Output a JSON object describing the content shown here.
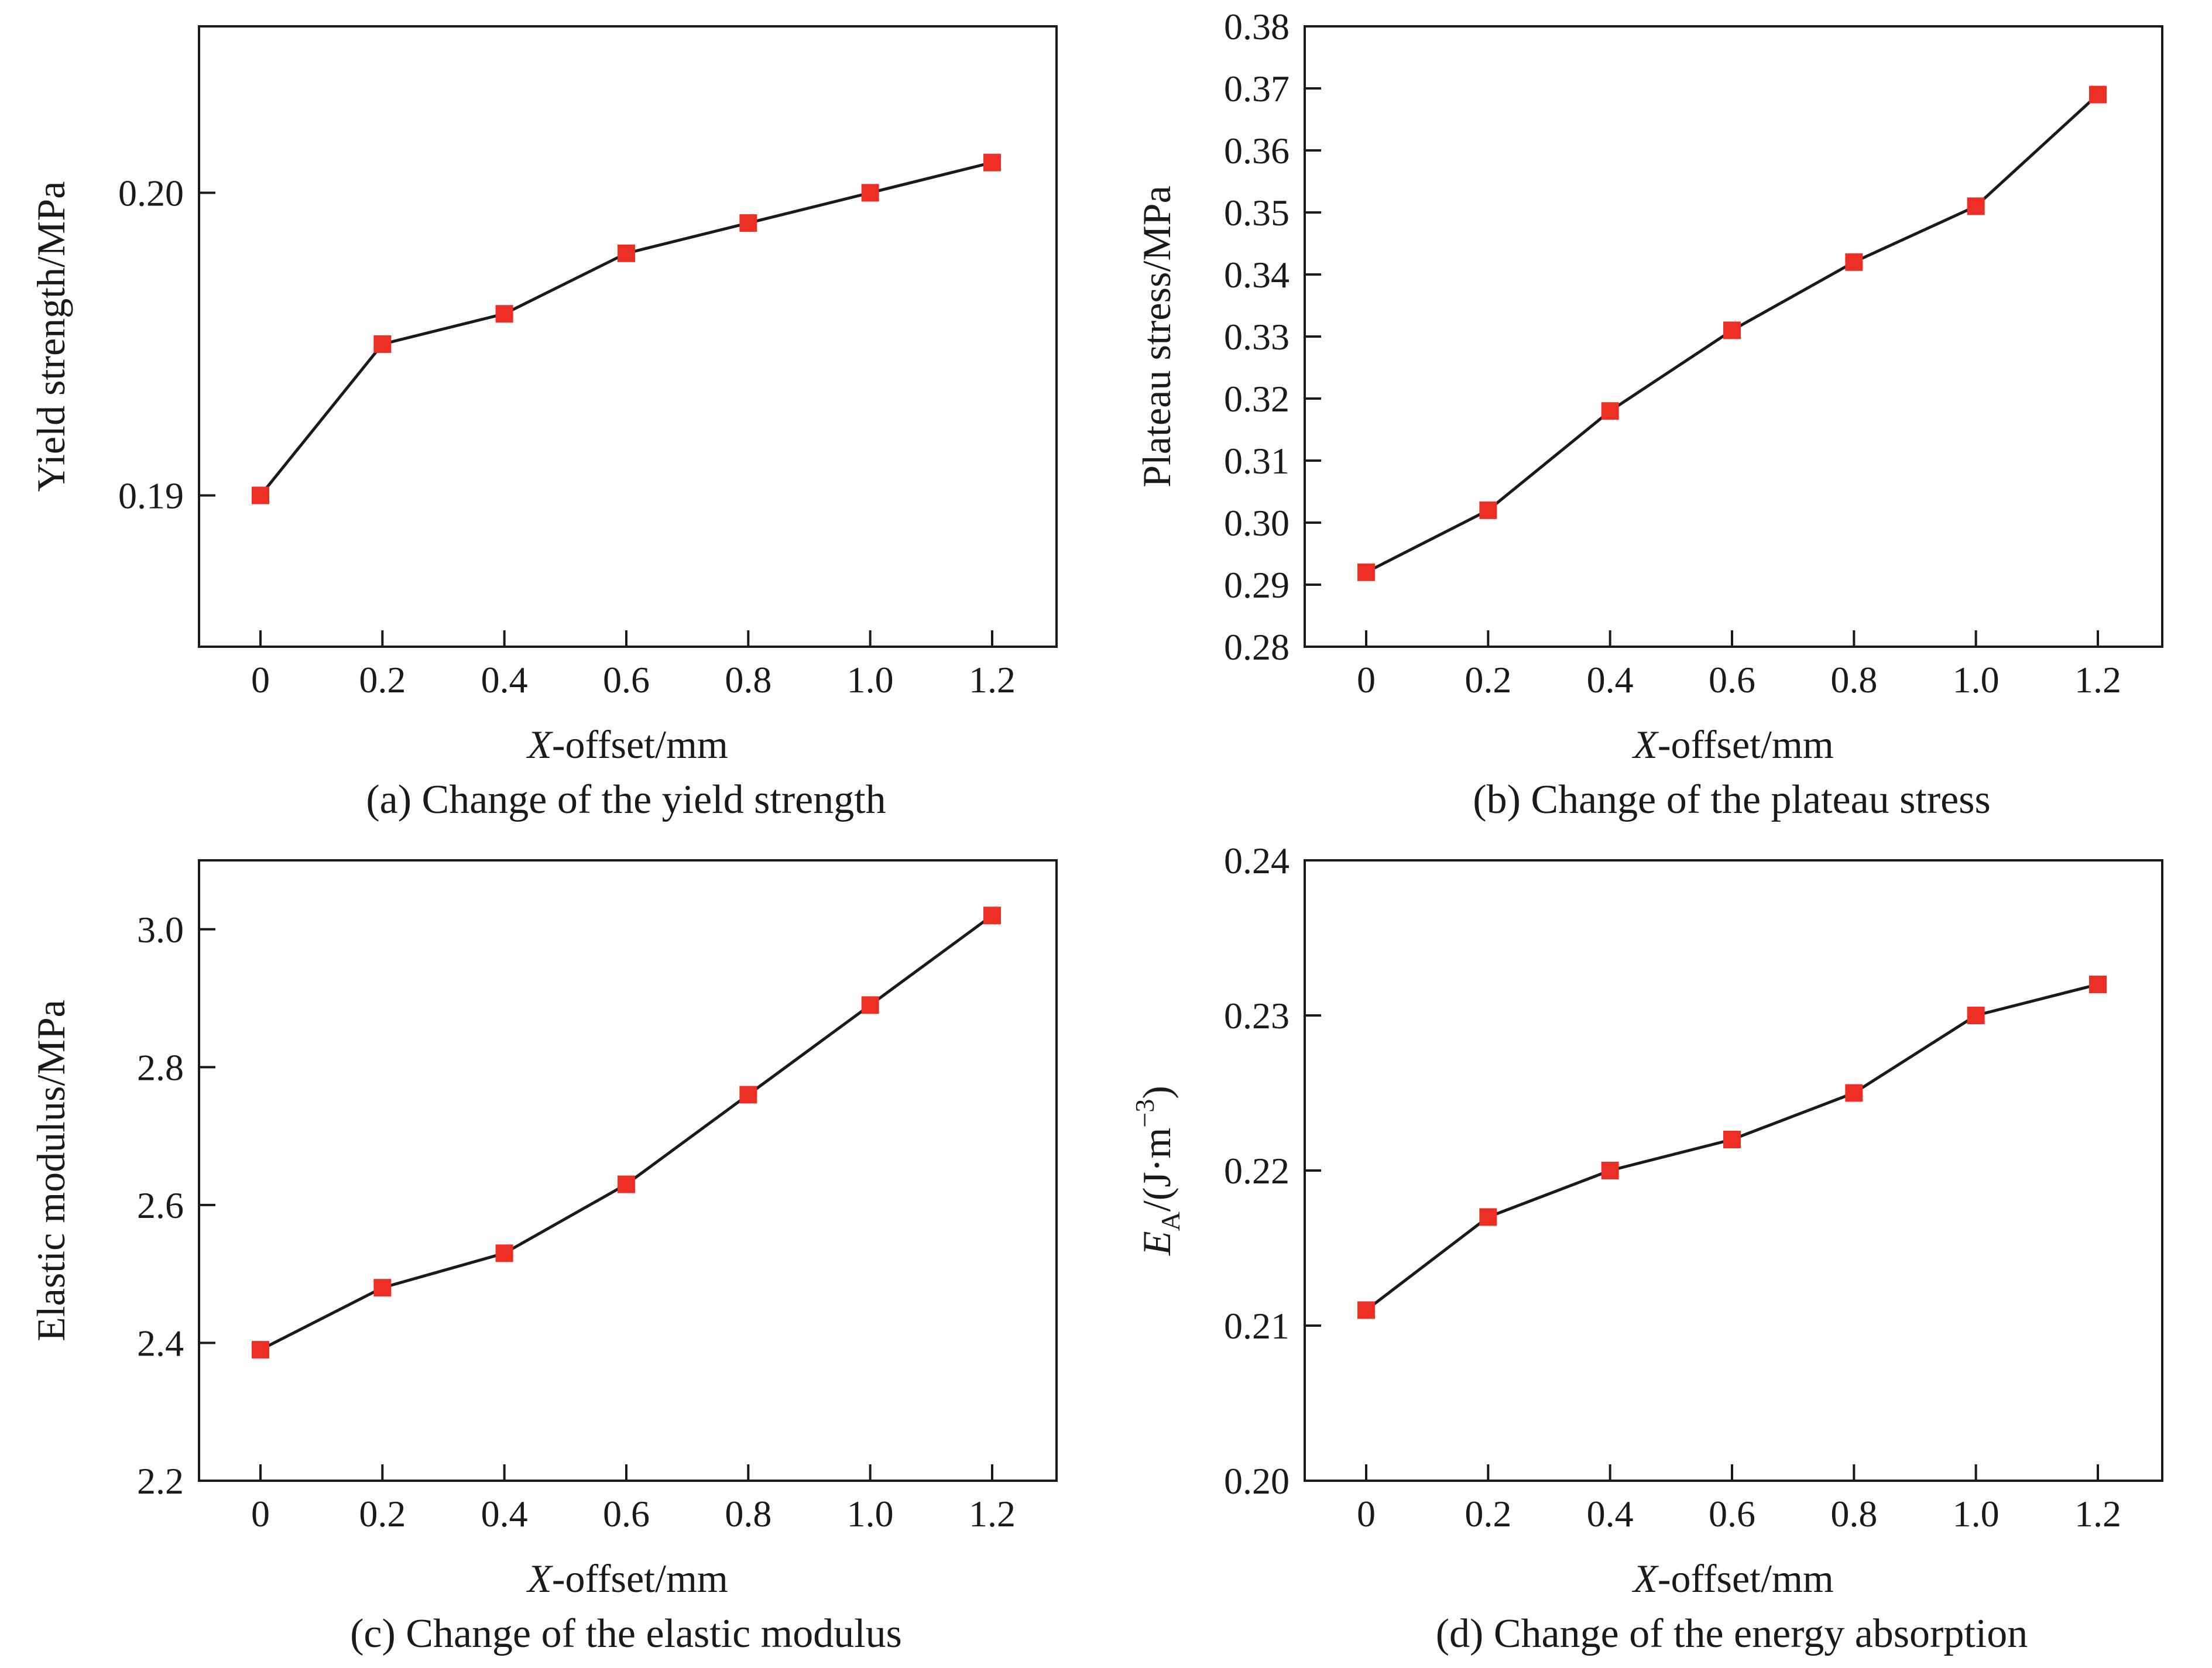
{
  "figure": {
    "background": "#ffffff"
  },
  "style": {
    "marker_red": "#ed2e24",
    "line_black": "#1a1a1a",
    "axis_black": "#1a1a1a",
    "text_black": "#1a1a1a"
  },
  "chart_data": [
    {
      "id": "a",
      "type": "line",
      "caption": "(a) Change of the yield strength",
      "xlabel": "X-offset/mm",
      "xlabel_parts": [
        {
          "t": "X",
          "style": "italic"
        },
        {
          "t": "-offset/mm",
          "style": "normal"
        }
      ],
      "ylabel": "Yield strength/MPa",
      "ylabel_parts": [
        {
          "t": "Yield strength/MPa",
          "style": "normal"
        }
      ],
      "x_categories": [
        "0",
        "0.2",
        "0.4",
        "0.6",
        "0.8",
        "1.0",
        "1.2"
      ],
      "x_values": [
        0,
        0.2,
        0.4,
        0.6,
        0.8,
        1.0,
        1.2
      ],
      "values": [
        0.19,
        0.195,
        0.196,
        0.198,
        0.199,
        0.2,
        0.201
      ],
      "yticks": [
        {
          "v": 0.19,
          "label": "0.19"
        },
        {
          "v": 0.2,
          "label": "0.20"
        }
      ],
      "ylim": [
        0.185,
        0.2055
      ],
      "grid": false,
      "legend": null,
      "marker": "square",
      "marker_color": "#ed2e24",
      "line_color": "#1a1a1a"
    },
    {
      "id": "b",
      "type": "line",
      "caption": "(b) Change of the plateau stress",
      "xlabel": "X-offset/mm",
      "xlabel_parts": [
        {
          "t": "X",
          "style": "italic"
        },
        {
          "t": "-offset/mm",
          "style": "normal"
        }
      ],
      "ylabel": "Plateau stress/MPa",
      "ylabel_parts": [
        {
          "t": "Plateau stress/MPa",
          "style": "normal"
        }
      ],
      "x_categories": [
        "0",
        "0.2",
        "0.4",
        "0.6",
        "0.8",
        "1.0",
        "1.2"
      ],
      "x_values": [
        0,
        0.2,
        0.4,
        0.6,
        0.8,
        1.0,
        1.2
      ],
      "values": [
        0.292,
        0.302,
        0.318,
        0.331,
        0.342,
        0.351,
        0.369
      ],
      "yticks": [
        {
          "v": 0.28,
          "label": "0.28"
        },
        {
          "v": 0.29,
          "label": "0.29"
        },
        {
          "v": 0.3,
          "label": "0.30"
        },
        {
          "v": 0.31,
          "label": "0.31"
        },
        {
          "v": 0.32,
          "label": "0.32"
        },
        {
          "v": 0.33,
          "label": "0.33"
        },
        {
          "v": 0.34,
          "label": "0.34"
        },
        {
          "v": 0.35,
          "label": "0.35"
        },
        {
          "v": 0.36,
          "label": "0.36"
        },
        {
          "v": 0.37,
          "label": "0.37"
        },
        {
          "v": 0.38,
          "label": "0.38"
        }
      ],
      "ylim": [
        0.28,
        0.38
      ],
      "grid": false,
      "legend": null,
      "marker": "square",
      "marker_color": "#ed2e24",
      "line_color": "#1a1a1a"
    },
    {
      "id": "c",
      "type": "line",
      "caption": "(c) Change of the elastic modulus",
      "xlabel": "X-offset/mm",
      "xlabel_parts": [
        {
          "t": "X",
          "style": "italic"
        },
        {
          "t": "-offset/mm",
          "style": "normal"
        }
      ],
      "ylabel": "Elastic modulus/MPa",
      "ylabel_parts": [
        {
          "t": "Elastic modulus/MPa",
          "style": "normal"
        }
      ],
      "x_categories": [
        "0",
        "0.2",
        "0.4",
        "0.6",
        "0.8",
        "1.0",
        "1.2"
      ],
      "x_values": [
        0,
        0.2,
        0.4,
        0.6,
        0.8,
        1.0,
        1.2
      ],
      "values": [
        2.39,
        2.48,
        2.53,
        2.63,
        2.76,
        2.89,
        3.02
      ],
      "yticks": [
        {
          "v": 2.2,
          "label": "2.2"
        },
        {
          "v": 2.4,
          "label": "2.4"
        },
        {
          "v": 2.6,
          "label": "2.6"
        },
        {
          "v": 2.8,
          "label": "2.8"
        },
        {
          "v": 3.0,
          "label": "3.0"
        }
      ],
      "ylim": [
        2.2,
        3.1
      ],
      "grid": false,
      "legend": null,
      "marker": "square",
      "marker_color": "#ed2e24",
      "line_color": "#1a1a1a"
    },
    {
      "id": "d",
      "type": "line",
      "caption": "(d) Change of the energy absorption",
      "xlabel": "X-offset/mm",
      "xlabel_parts": [
        {
          "t": "X",
          "style": "italic"
        },
        {
          "t": "-offset/mm",
          "style": "normal"
        }
      ],
      "ylabel": "EA/(J·m−3)",
      "ylabel_parts": [
        {
          "t": "E",
          "style": "italic"
        },
        {
          "t": "A",
          "style": "sub"
        },
        {
          "t": "/(J·m",
          "style": "normal"
        },
        {
          "t": "−3",
          "style": "sup"
        },
        {
          "t": ")",
          "style": "normal"
        }
      ],
      "x_categories": [
        "0",
        "0.2",
        "0.4",
        "0.6",
        "0.8",
        "1.0",
        "1.2"
      ],
      "x_values": [
        0,
        0.2,
        0.4,
        0.6,
        0.8,
        1.0,
        1.2
      ],
      "values": [
        0.211,
        0.217,
        0.22,
        0.222,
        0.225,
        0.23,
        0.232
      ],
      "yticks": [
        {
          "v": 0.2,
          "label": "0.20"
        },
        {
          "v": 0.21,
          "label": "0.21"
        },
        {
          "v": 0.22,
          "label": "0.22"
        },
        {
          "v": 0.23,
          "label": "0.23"
        },
        {
          "v": 0.24,
          "label": "0.24"
        }
      ],
      "ylim": [
        0.2,
        0.24
      ],
      "grid": false,
      "legend": null,
      "marker": "square",
      "marker_color": "#ed2e24",
      "line_color": "#1a1a1a"
    }
  ]
}
